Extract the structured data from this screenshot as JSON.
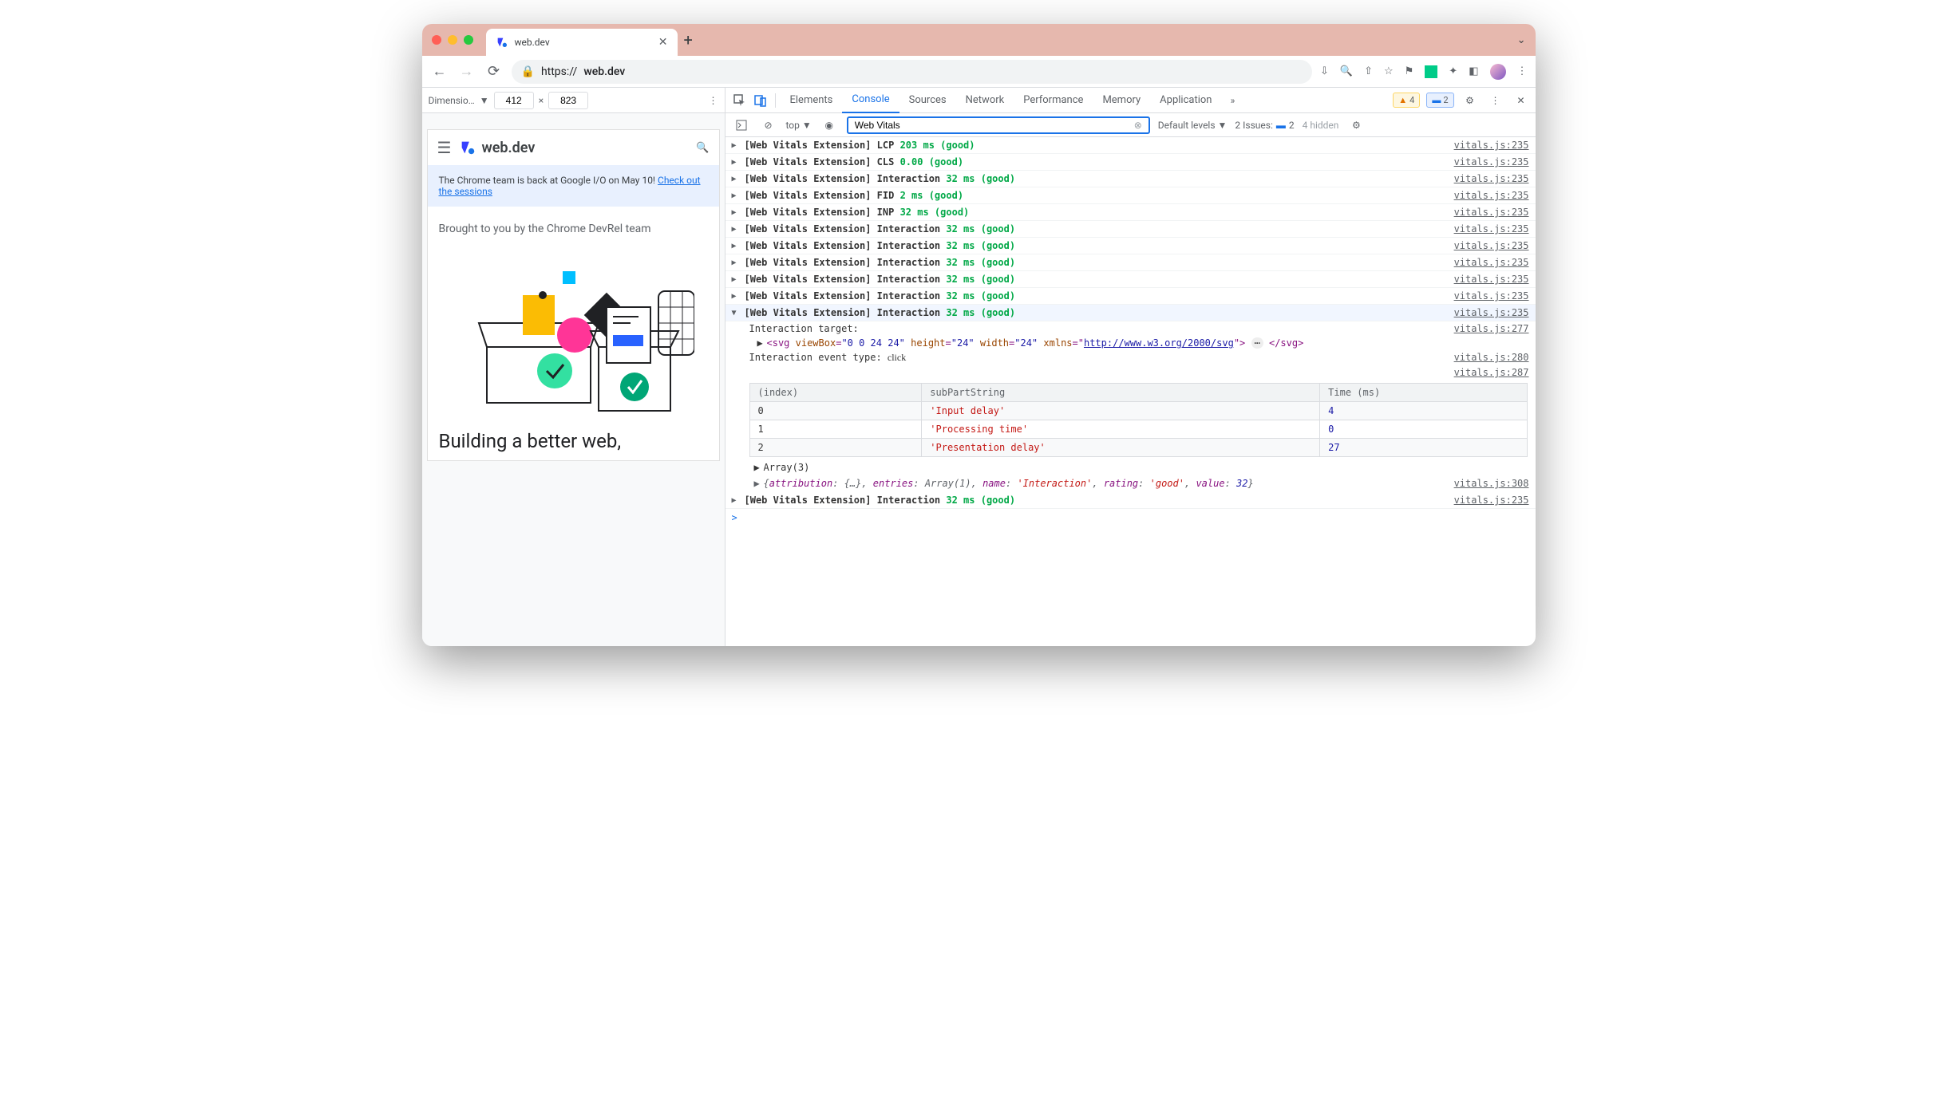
{
  "browser": {
    "tab_title": "web.dev",
    "url_scheme": "https://",
    "url_host": "web.dev"
  },
  "device": {
    "dimension_label": "Dimensio…",
    "width": "412",
    "height": "823",
    "times": "×"
  },
  "webdev": {
    "logo": "web.dev",
    "banner_text": "The Chrome team is back at Google I/O on May 10! ",
    "banner_link": "Check out the sessions",
    "devrel": "Brought to you by the Chrome DevRel team",
    "headline": "Building a better web,"
  },
  "devtools": {
    "tabs": [
      "Elements",
      "Console",
      "Sources",
      "Network",
      "Performance",
      "Memory",
      "Application"
    ],
    "active_tab": "Console",
    "warning_count": "4",
    "info_count": "2",
    "context": "top",
    "filter": "Web Vitals",
    "levels": "Default levels",
    "issues_label": "2 Issues:",
    "issues_count": "2",
    "hidden": "4 hidden"
  },
  "console": {
    "source": "vitals.js:235",
    "messages": [
      {
        "prefix": "[Web Vitals Extension] ",
        "metric": "LCP",
        "value": "203 ms (good)"
      },
      {
        "prefix": "[Web Vitals Extension] ",
        "metric": "CLS",
        "value": "0.00 (good)"
      },
      {
        "prefix": "[Web Vitals Extension] ",
        "metric": "Interaction",
        "value": "32 ms (good)"
      },
      {
        "prefix": "[Web Vitals Extension] ",
        "metric": "FID",
        "value": "2 ms (good)"
      },
      {
        "prefix": "[Web Vitals Extension] ",
        "metric": "INP",
        "value": "32 ms (good)"
      },
      {
        "prefix": "[Web Vitals Extension] ",
        "metric": "Interaction",
        "value": "32 ms (good)"
      },
      {
        "prefix": "[Web Vitals Extension] ",
        "metric": "Interaction",
        "value": "32 ms (good)"
      },
      {
        "prefix": "[Web Vitals Extension] ",
        "metric": "Interaction",
        "value": "32 ms (good)"
      },
      {
        "prefix": "[Web Vitals Extension] ",
        "metric": "Interaction",
        "value": "32 ms (good)"
      },
      {
        "prefix": "[Web Vitals Extension] ",
        "metric": "Interaction",
        "value": "32 ms (good)"
      }
    ],
    "expanded": {
      "prefix": "[Web Vitals Extension] ",
      "metric": "Interaction",
      "value": "32 ms (good)",
      "target_label": "Interaction target:",
      "svg_viewBox": "\"0 0 24 24\"",
      "svg_height": "\"24\"",
      "svg_width": "\"24\"",
      "svg_xmlns": "http://www.w3.org/2000/svg",
      "event_type_label": "Interaction event type: ",
      "event_type": "click",
      "src_target": "vitals.js:277",
      "src_event": "vitals.js:280",
      "src_table": "vitals.js:287",
      "src_obj": "vitals.js:308",
      "table": {
        "columns": [
          "(index)",
          "subPartString",
          "Time (ms)"
        ],
        "rows": [
          [
            "0",
            "'Input delay'",
            "4"
          ],
          [
            "1",
            "'Processing time'",
            "0"
          ],
          [
            "2",
            "'Presentation delay'",
            "27"
          ]
        ]
      },
      "array_label": "Array(3)",
      "obj": "{attribution: {…}, entries: Array(1), name: 'Interaction', rating: 'good', value: 32}"
    },
    "trailing": {
      "prefix": "[Web Vitals Extension] ",
      "metric": "Interaction",
      "value": "32 ms (good)"
    }
  },
  "colors": {
    "good": "#00a846",
    "link": "#1a73e8",
    "string": "#c41a16",
    "number": "#1a1aa6",
    "tag": "#881280",
    "attr": "#994500"
  }
}
